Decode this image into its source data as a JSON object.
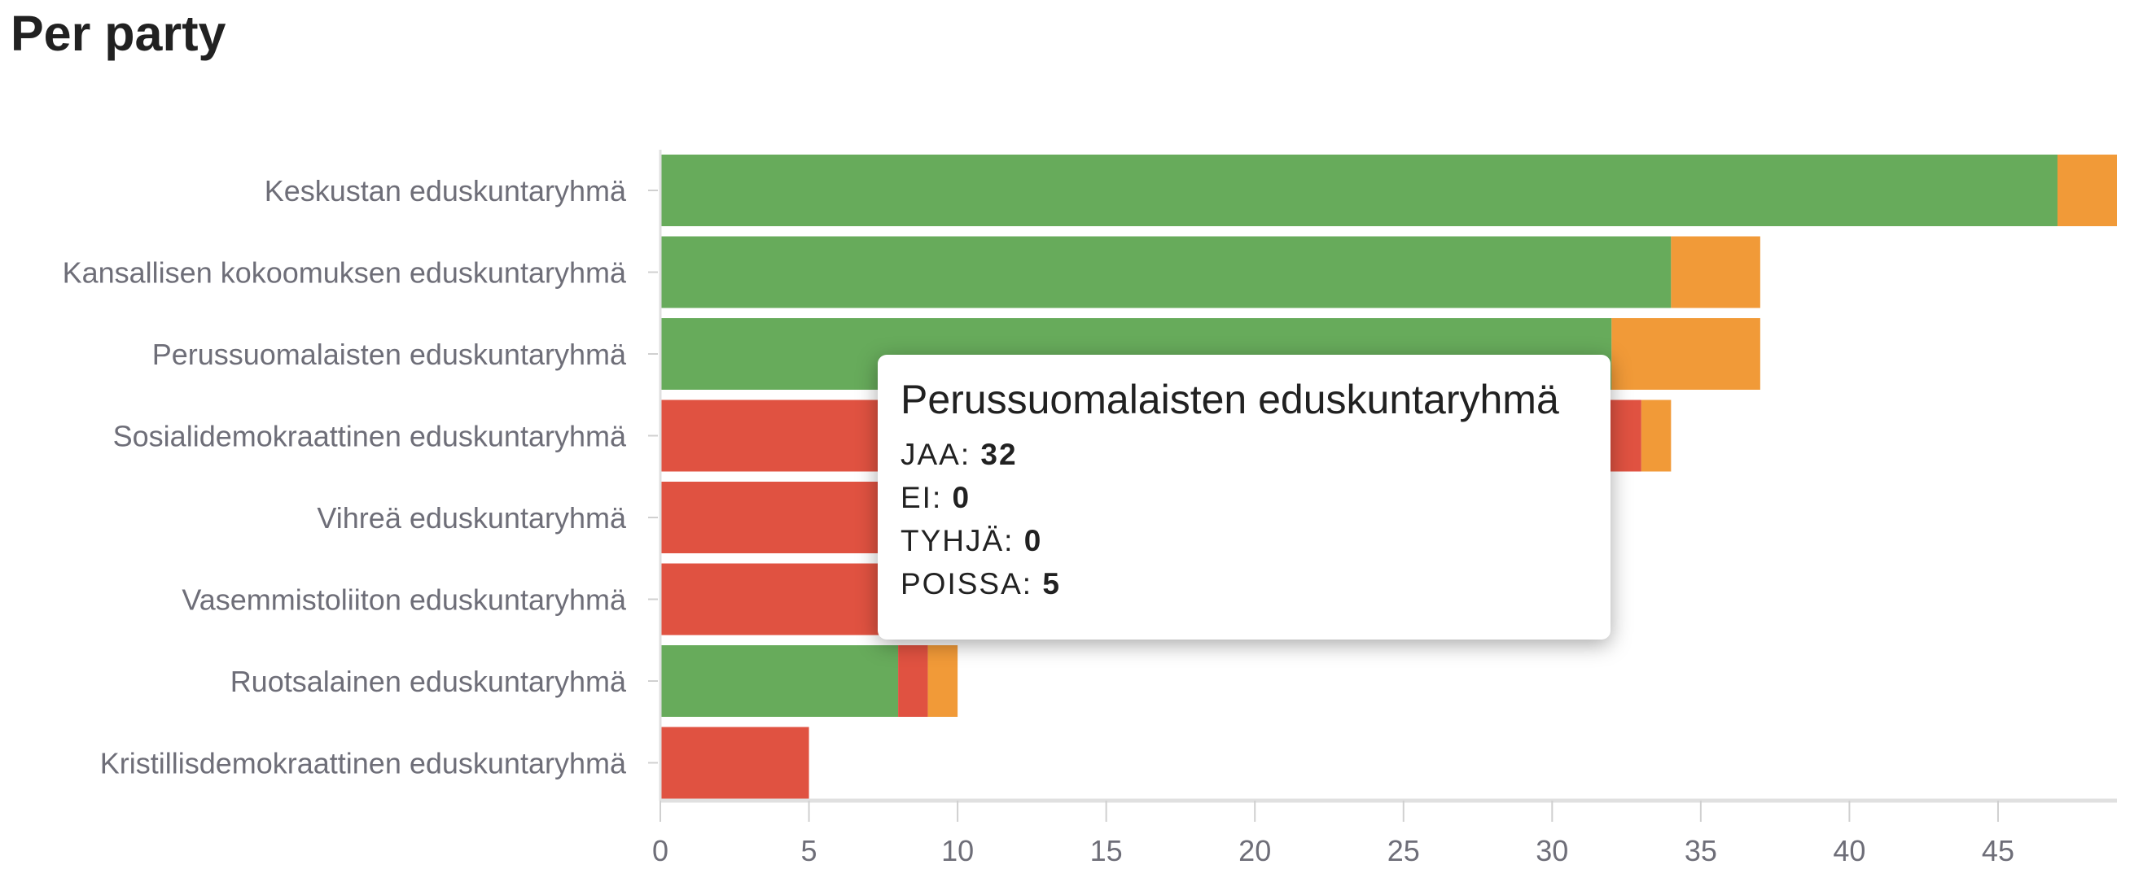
{
  "page": {
    "title": "Per party"
  },
  "chart_data": {
    "type": "bar",
    "orientation": "horizontal",
    "stacked": true,
    "categories": [
      "Keskustan eduskuntaryhmä",
      "Kansallisen kokoomuksen eduskuntaryhmä",
      "Perussuomalaisten eduskuntaryhmä",
      "Sosialidemokraattinen eduskuntaryhmä",
      "Vihreä eduskuntaryhmä",
      "Vasemmistoliiton eduskuntaryhmä",
      "Ruotsalainen eduskuntaryhmä",
      "Kristillisdemokraattinen eduskuntaryhmä"
    ],
    "series": [
      {
        "name": "JAA",
        "color": "#67ab5b",
        "values": [
          47,
          34,
          32,
          0,
          0,
          0,
          8,
          0
        ]
      },
      {
        "name": "EI",
        "color": "#e05241",
        "values": [
          0,
          0,
          0,
          33,
          20,
          16,
          1,
          5
        ]
      },
      {
        "name": "TYHJÄ",
        "color": "#b0b0b0",
        "values": [
          0,
          0,
          0,
          0,
          0,
          0,
          0,
          0
        ]
      },
      {
        "name": "POISSA",
        "color": "#f19a38",
        "values": [
          2,
          3,
          5,
          1,
          0,
          0,
          1,
          0
        ]
      }
    ],
    "xticks": [
      "0",
      "5",
      "10",
      "15",
      "20",
      "25",
      "30",
      "35",
      "40",
      "45"
    ],
    "xlim": [
      0,
      49
    ],
    "grid": false,
    "legend": "none"
  },
  "tooltip": {
    "title": "Perussuomalaisten eduskuntaryhmä",
    "rows": [
      {
        "label": "JAA:",
        "value": "32"
      },
      {
        "label": "EI:",
        "value": "0"
      },
      {
        "label": "TYHJÄ:",
        "value": "0"
      },
      {
        "label": "POISSA:",
        "value": "5"
      }
    ]
  }
}
